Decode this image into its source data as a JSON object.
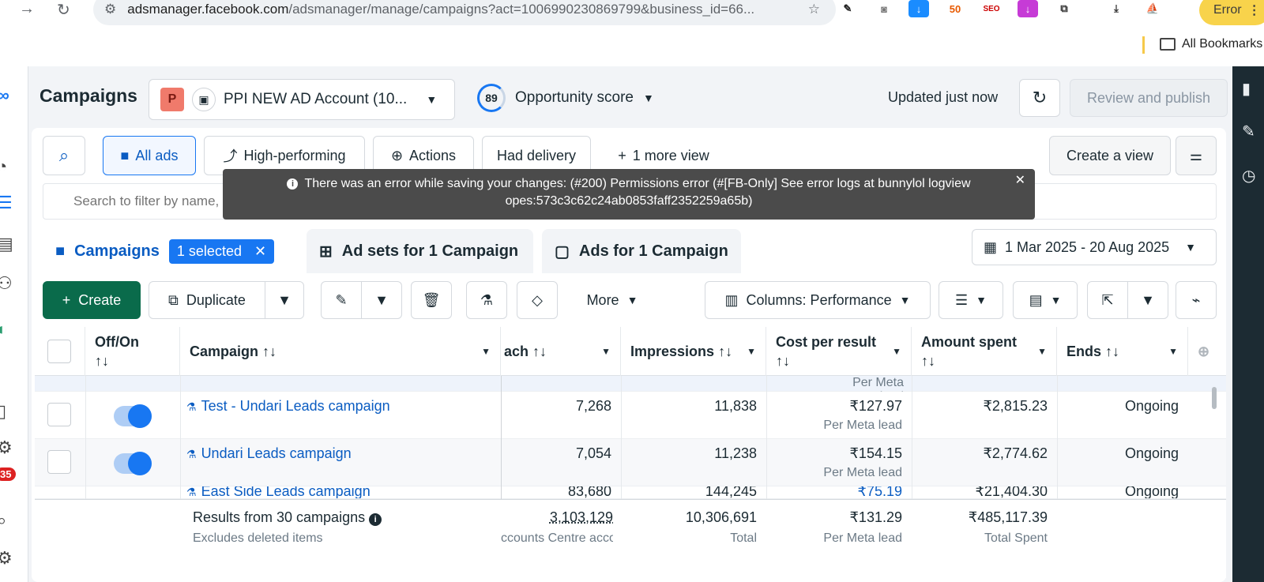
{
  "browser": {
    "url_host": "adsmanager.facebook.com",
    "url_path": "/adsmanager/manage/campaigns?act=1006990230869799&business_id=66...",
    "error_label": "Error",
    "bookmarks_label": "All Bookmarks",
    "ext_50": "50",
    "ext_seo": "SEO"
  },
  "header": {
    "title": "Campaigns",
    "account_badge": "P",
    "account_name": "PPI NEW AD Account (10...",
    "opportunity_score": "89",
    "opportunity_label": "Opportunity score",
    "updated": "Updated just now",
    "review_publish": "Review and publish"
  },
  "leftnav_badge": "35",
  "views": {
    "all_ads": "All ads",
    "high_performing": "High-performing",
    "actions": "Actions",
    "had_delivery": "Had delivery",
    "more_view": "1 more view",
    "create_view": "Create a view"
  },
  "search": {
    "placeholder": "Search to filter by name, ID or metrics"
  },
  "toast": {
    "line1": "There was an error while saving your changes: (#200) Permissions error (#[FB-Only] See error logs at bunnylol logview",
    "line2": "opes:573c3c62c24ab0853faff2352259a65b)"
  },
  "tabs": {
    "campaigns": "Campaigns",
    "selected": "1 selected",
    "adsets": "Ad sets for 1 Campaign",
    "ads": "Ads for 1 Campaign"
  },
  "date_range": "1 Mar 2025 - 20 Aug 2025",
  "toolbar": {
    "create": "Create",
    "duplicate": "Duplicate",
    "more": "More",
    "columns": "Columns: Performance"
  },
  "table": {
    "headers": {
      "offon": "Off/On",
      "campaign": "Campaign",
      "reach": "ach",
      "impressions": "Impressions",
      "cpr": "Cost per result",
      "spent": "Amount spent",
      "ends": "Ends"
    },
    "sort_glyph": "↑↓",
    "partial_top_sub": "Per Meta lead",
    "rows": [
      {
        "name": "Test - Undari Leads campaign",
        "reach": "7,268",
        "impressions": "11,838",
        "cpr": "₹127.97",
        "cpr_sub": "Per Meta lead",
        "spent": "₹2,815.23",
        "ends": "Ongoing"
      },
      {
        "name": "Undari Leads campaign",
        "reach": "7,054",
        "impressions": "11,238",
        "cpr": "₹154.15",
        "cpr_sub": "Per Meta lead",
        "spent": "₹2,774.62",
        "ends": "Ongoing"
      },
      {
        "name": "East Side Leads campaign",
        "reach": "83,680",
        "impressions": "144,245",
        "cpr": "₹75.19",
        "spent": "₹21,404.30",
        "ends": "Ongoing"
      }
    ],
    "footer": {
      "results": "Results from 30 campaigns",
      "excludes": "Excludes deleted items",
      "reach": "3,103,129",
      "reach_sub": "ccounts Centre acco...",
      "impressions": "10,306,691",
      "impressions_sub": "Total",
      "cpr": "₹131.29",
      "cpr_sub": "Per Meta lead",
      "spent": "₹485,117.39",
      "spent_sub": "Total Spent"
    }
  }
}
